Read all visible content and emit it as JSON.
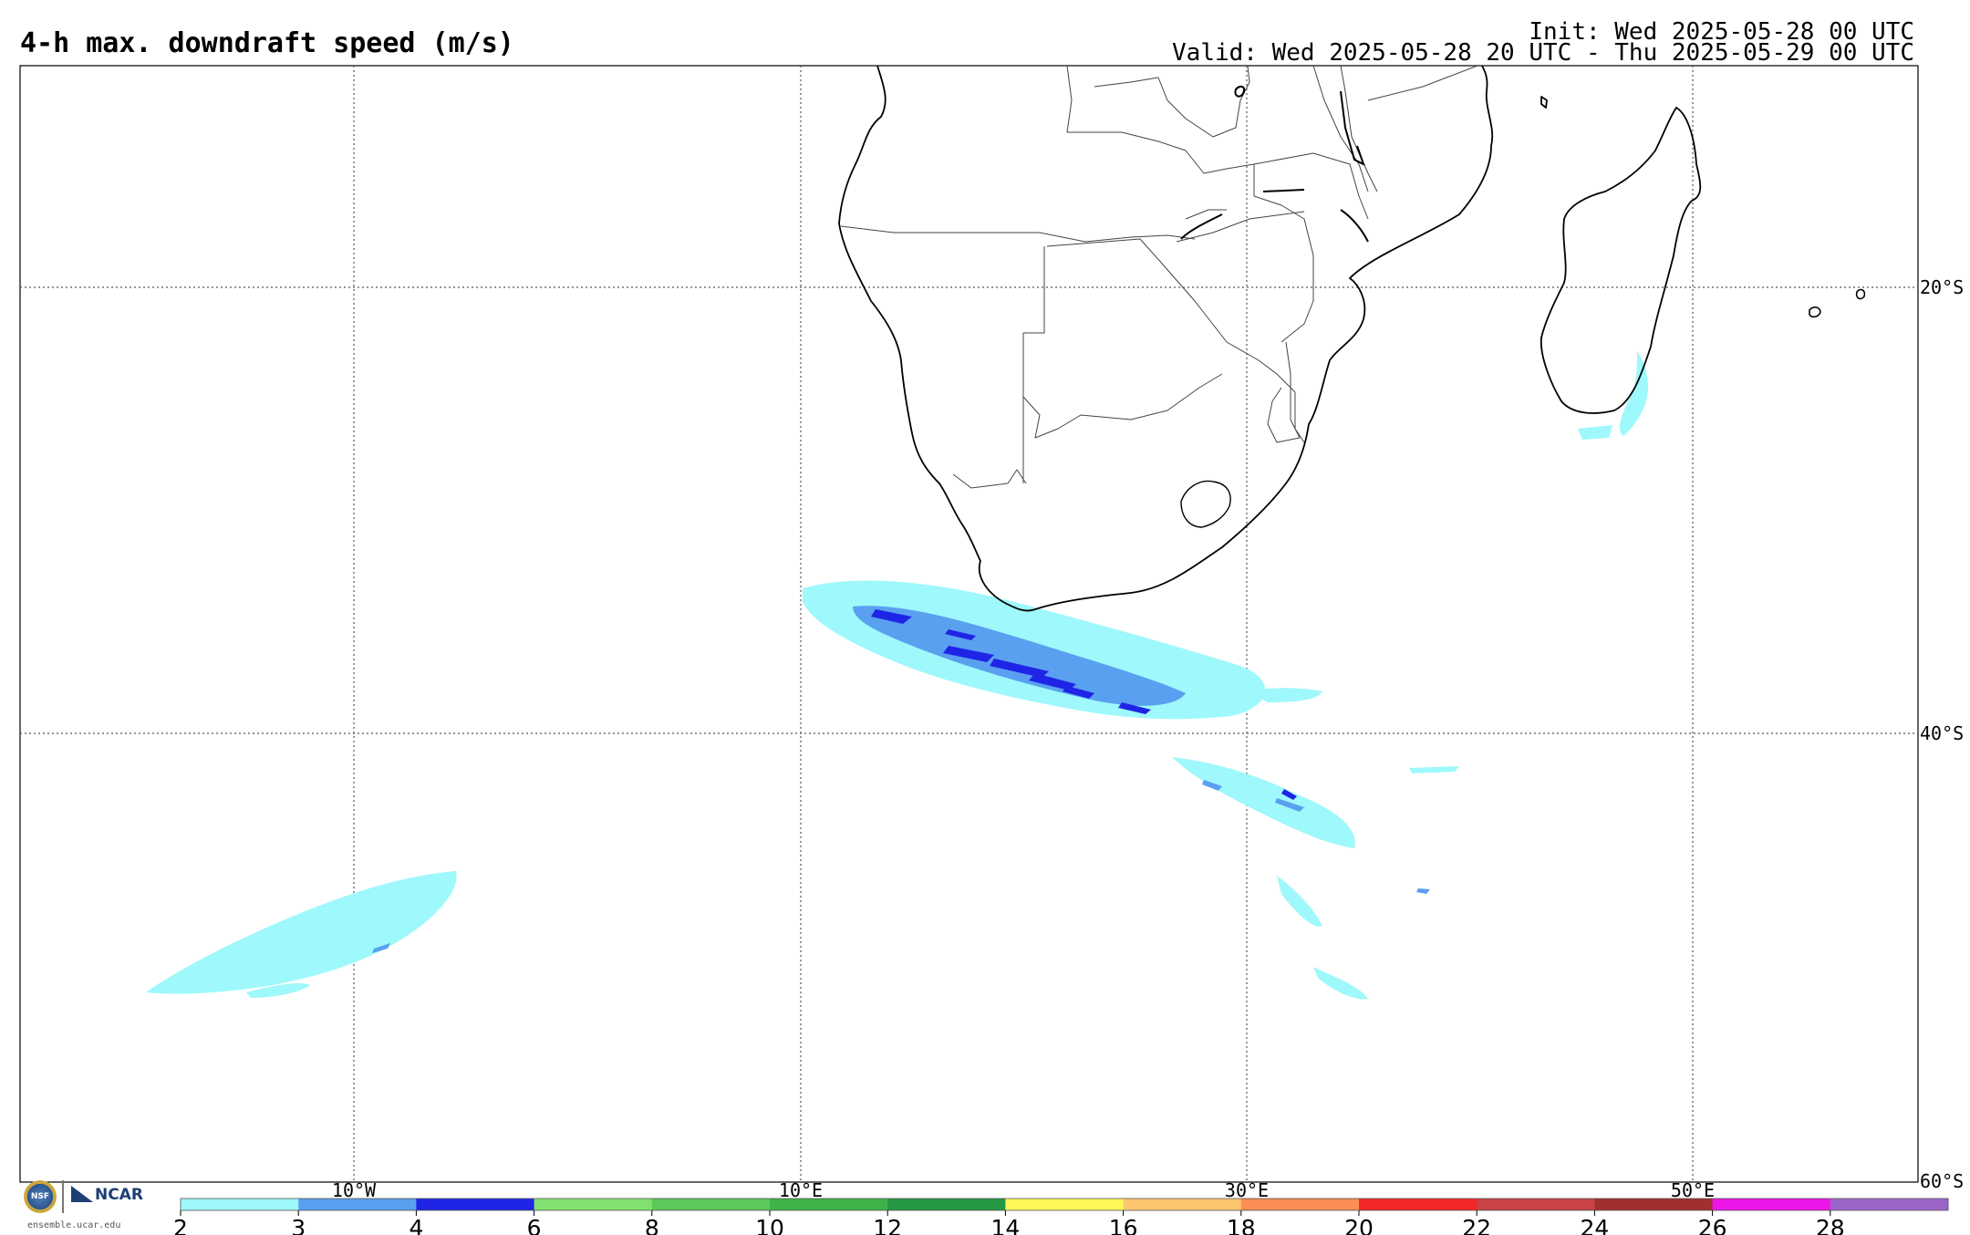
{
  "header": {
    "title": "4-h max. downdraft speed (m/s)",
    "init": "Init: Wed 2025-05-28 00 UTC",
    "valid": "Valid: Wed 2025-05-28 20 UTC - Thu 2025-05-29 00 UTC"
  },
  "map": {
    "region": "Southern Africa and South Atlantic / Southwest Indian Ocean",
    "lon_ticks": [
      "10°W",
      "10°E",
      "30°E",
      "50°E"
    ],
    "lat_ticks": [
      "20°S",
      "40°S",
      "60°S"
    ],
    "gridlines": "dotted",
    "features": [
      "coastlines",
      "country borders",
      "Madagascar",
      "Lesotho"
    ]
  },
  "colorbar": {
    "labels": [
      "2",
      "3",
      "4",
      "6",
      "8",
      "10",
      "12",
      "14",
      "16",
      "18",
      "20",
      "22",
      "24",
      "26",
      "28"
    ],
    "colors": [
      "#9ff8fb",
      "#5aa0f0",
      "#1f24e6",
      "#82e070",
      "#5cc85a",
      "#3fb24a",
      "#269843",
      "#fff65a",
      "#fdc66e",
      "#fb8d55",
      "#f22727",
      "#c94245",
      "#a12f31",
      "#ec15e8",
      "#9b63c8"
    ]
  },
  "footer": {
    "nsf_label": "NSF",
    "ncar_label": "NCAR",
    "site": "ensemble.ucar.edu"
  }
}
